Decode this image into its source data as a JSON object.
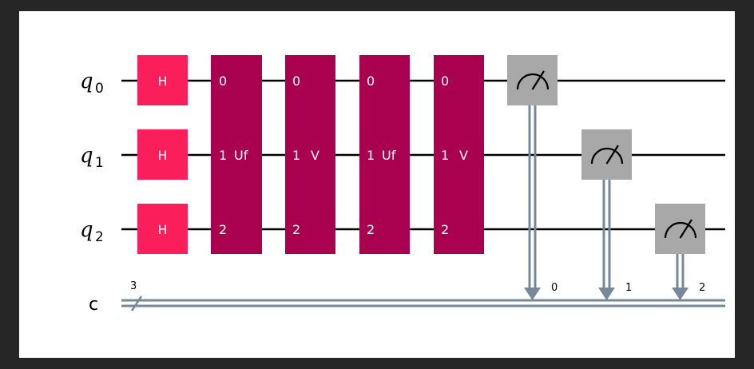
{
  "colors": {
    "background": "#262626",
    "canvas": "#ffffff",
    "h_gate": "#fa1e5a",
    "oracle_gate": "#a90050",
    "measure": "#a8a8a8",
    "classical_wire": "#778899"
  },
  "circuit": {
    "qubits": [
      {
        "letter": "q",
        "index": "0"
      },
      {
        "letter": "q",
        "index": "1"
      },
      {
        "letter": "q",
        "index": "2"
      }
    ],
    "classical": {
      "label": "c",
      "bits": "3"
    },
    "h_gates": [
      "H",
      "H",
      "H"
    ],
    "oracle_gates": [
      {
        "name": "Uf",
        "pins": [
          "0",
          "1",
          "2"
        ]
      },
      {
        "name": "V",
        "pins": [
          "0",
          "1",
          "2"
        ]
      },
      {
        "name": "Uf",
        "pins": [
          "0",
          "1",
          "2"
        ]
      },
      {
        "name": "V",
        "pins": [
          "0",
          "1",
          "2"
        ]
      }
    ],
    "measurements": [
      {
        "qubit": 0,
        "target_bit": "0"
      },
      {
        "qubit": 1,
        "target_bit": "1"
      },
      {
        "qubit": 2,
        "target_bit": "2"
      }
    ]
  }
}
